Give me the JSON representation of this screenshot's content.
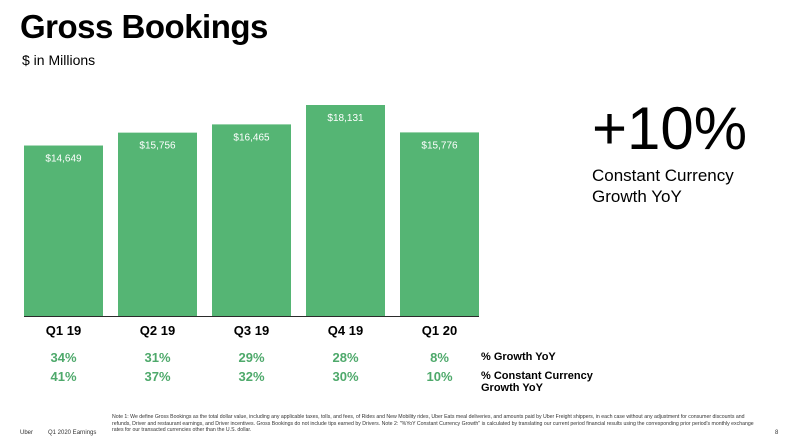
{
  "page": {
    "title": "Gross Bookings",
    "subtitle": "$ in Millions",
    "headline": {
      "value": "+10%",
      "caption_line1": "Constant Currency",
      "caption_line2": "Growth YoY"
    },
    "row_labels": {
      "growth": "% Growth YoY",
      "cc_line1": "% Constant Currency",
      "cc_line2": "Growth YoY"
    },
    "footer": {
      "brand": "Uber",
      "doc": "Q1 2020 Earnings",
      "page_number": "8",
      "note": "Note 1: We define Gross Bookings as the total dollar value, including any applicable taxes, tolls, and fees, of Rides and New Mobility rides, Uber Eats meal deliveries, and amounts paid by Uber Freight shippers, in each case without any adjustment for consumer discounts and refunds, Driver and restaurant earnings, and Driver incentives. Gross Bookings do not include tips earned by Drivers. Note 2: \"%YoY Constant Currency Growth\" is calculated by translating our current period financial results using the corresponding prior period's monthly exchange rates for our transacted currencies other than the U.S. dollar."
    }
  },
  "colors": {
    "bar": "#55b574",
    "growth_text": "#4ea96b",
    "baseline": "#2b2b2b"
  },
  "chart_data": {
    "type": "bar",
    "title": "Gross Bookings",
    "subtitle": "$ in Millions",
    "categories": [
      "Q1 19",
      "Q2 19",
      "Q3 19",
      "Q4 19",
      "Q1 20"
    ],
    "values": [
      14649,
      15756,
      16465,
      18131,
      15776
    ],
    "value_labels": [
      "$14,649",
      "$15,756",
      "$16,465",
      "$18,131",
      "$15,776"
    ],
    "growth_yoy": [
      "34%",
      "31%",
      "29%",
      "28%",
      "8%"
    ],
    "cc_growth_yoy": [
      "41%",
      "37%",
      "32%",
      "30%",
      "10%"
    ],
    "ylim": [
      0,
      18131
    ],
    "grid": false,
    "legend": "none"
  }
}
